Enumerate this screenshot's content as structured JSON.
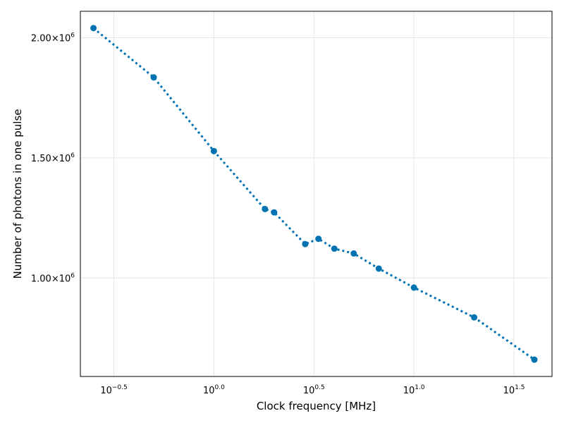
{
  "chart_data": {
    "type": "scatter",
    "title": "",
    "xlabel": "Clock frequency [MHz]",
    "ylabel": "Number of photons in one pulse",
    "x_scale": "log10",
    "xlim": [
      0.215,
      49.0
    ],
    "ylim": [
      590000,
      2110000
    ],
    "x_ticks": [
      {
        "value": 0.31623,
        "base": "10",
        "exp": "−0.5"
      },
      {
        "value": 1.0,
        "base": "10",
        "exp": "0.0"
      },
      {
        "value": 3.16228,
        "base": "10",
        "exp": "0.5"
      },
      {
        "value": 10.0,
        "base": "10",
        "exp": "1.0"
      },
      {
        "value": 31.6228,
        "base": "10",
        "exp": "1.5"
      }
    ],
    "y_ticks": [
      {
        "value": 1000000,
        "mantissa": "1.00×10",
        "exp": "6"
      },
      {
        "value": 1500000,
        "mantissa": "1.50×10",
        "exp": "6"
      },
      {
        "value": 2000000,
        "mantissa": "2.00×10",
        "exp": "6"
      }
    ],
    "grid": true,
    "series": [
      {
        "color": "#0072b2",
        "line_style": "dotted",
        "marker": "circle",
        "x": [
          0.25,
          0.5,
          1.0,
          1.8,
          2.0,
          2.86,
          3.33,
          4.0,
          5.0,
          6.67,
          10.0,
          20.0,
          40.0
        ],
        "y": [
          2040000,
          1835000,
          1528000,
          1287000,
          1273000,
          1141000,
          1163000,
          1122000,
          1102000,
          1039000,
          960000,
          836000,
          660000
        ]
      }
    ]
  }
}
